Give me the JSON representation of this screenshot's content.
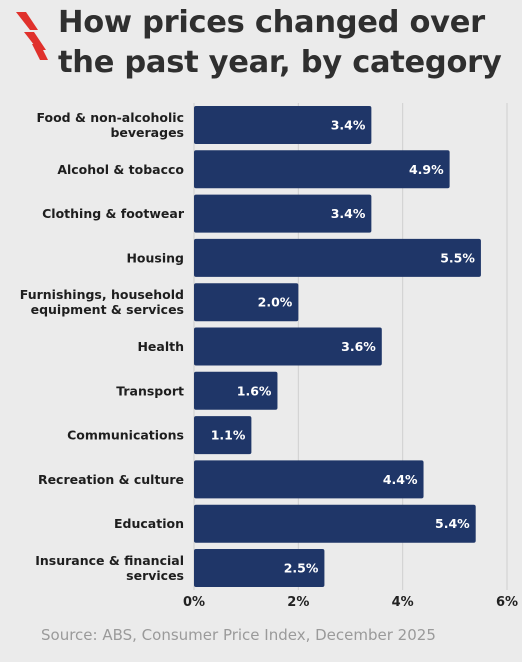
{
  "header": {
    "title_line1": "How prices changed over",
    "title_line2": "the past year, by category"
  },
  "footer": {
    "source": "Source: ABS, Consumer Price Index, December 2025"
  },
  "icons": {
    "brand": "sbs-logo-icon"
  },
  "colors": {
    "bar": "#1f3668",
    "logo": "#e0312c",
    "background": "#ebebeb",
    "gridline": "#cfcfcf"
  },
  "chart_data": {
    "type": "bar",
    "orientation": "horizontal",
    "title": "How prices changed over the past year, by category",
    "categories": [
      [
        "Food & non-alcoholic",
        "beverages"
      ],
      [
        "Alcohol & tobacco"
      ],
      [
        "Clothing & footwear"
      ],
      [
        "Housing"
      ],
      [
        "Furnishings, household",
        "equipment & services"
      ],
      [
        "Health"
      ],
      [
        "Transport"
      ],
      [
        "Communications"
      ],
      [
        "Recreation & culture"
      ],
      [
        "Education"
      ],
      [
        "Insurance & financial",
        "services"
      ]
    ],
    "values": [
      3.4,
      4.9,
      3.4,
      5.5,
      2.0,
      3.6,
      1.6,
      1.1,
      4.4,
      5.4,
      2.5
    ],
    "value_labels": [
      "3.4%",
      "4.9%",
      "3.4%",
      "5.5%",
      "2.0%",
      "3.6%",
      "1.6%",
      "1.1%",
      "4.4%",
      "5.4%",
      "2.5%"
    ],
    "xlim": [
      0,
      6
    ],
    "xticks": [
      0,
      2,
      4,
      6
    ],
    "xtick_labels": [
      "0%",
      "2%",
      "4%",
      "6%"
    ],
    "grid": true,
    "legend": "none"
  }
}
